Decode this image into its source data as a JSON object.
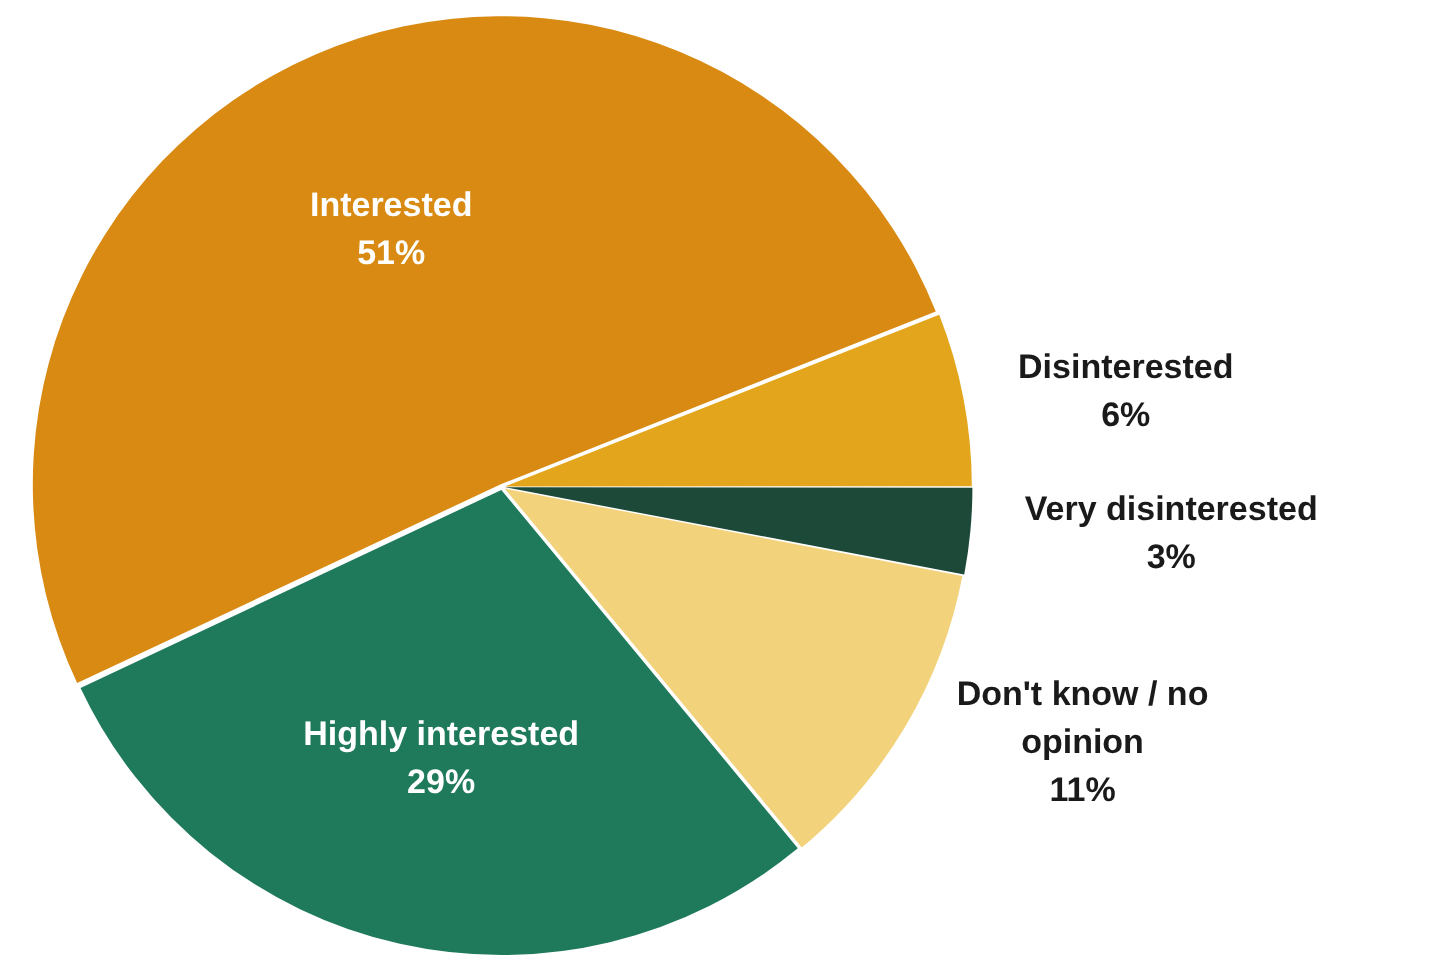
{
  "chart_data": {
    "type": "pie",
    "categories": [
      "Disinterested",
      "Very disinterested",
      "Don't know / no opinion",
      "Highly interested",
      "Interested"
    ],
    "values": [
      6,
      3,
      11,
      29,
      51
    ],
    "colors": [
      "#e2a51c",
      "#1d4a38",
      "#f3d27c",
      "#1f7a5c",
      "#d98a12"
    ],
    "value_labels": [
      "6%",
      "3%",
      "11%",
      "29%",
      "51%"
    ],
    "legend": false
  }
}
